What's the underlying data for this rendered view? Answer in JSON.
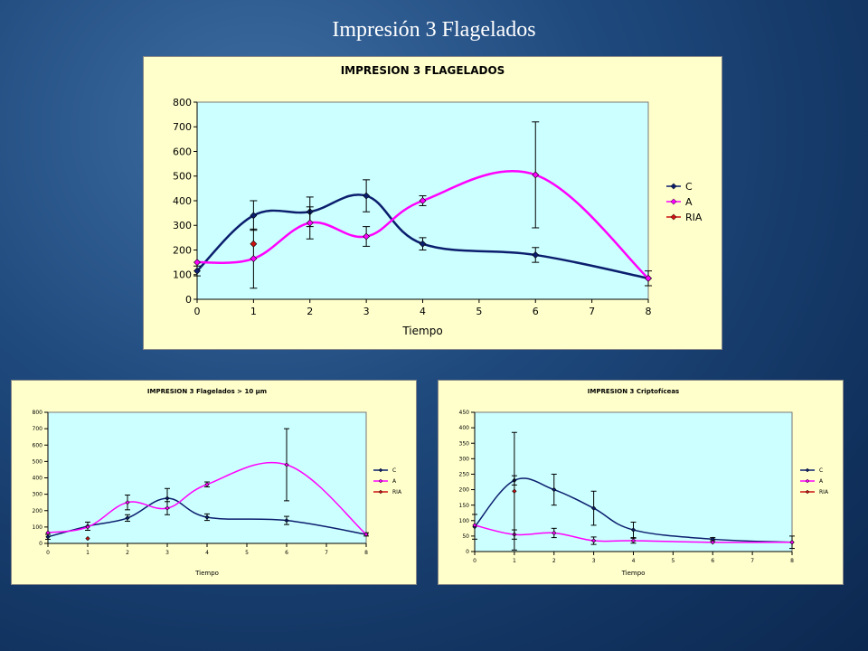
{
  "slide_title": "Impresión 3 Flagelados",
  "colors": {
    "C": "#0b1e6e",
    "A": "#ff00ff",
    "RIA": "#cc1111",
    "plot_bg": "#ccffff",
    "chart_bg": "#ffffcc"
  },
  "chart_data": [
    {
      "type": "line",
      "title": "IMPRESION 3 FLAGELADOS",
      "xlabel": "Tiempo",
      "ylabel": "",
      "xlim": [
        0,
        8
      ],
      "ylim": [
        0,
        800
      ],
      "xticks": [
        0,
        1,
        2,
        3,
        4,
        5,
        6,
        7,
        8
      ],
      "yticks": [
        0,
        100,
        200,
        300,
        400,
        500,
        600,
        700,
        800
      ],
      "legend_position": "right",
      "series": [
        {
          "name": "C",
          "x": [
            0,
            1,
            2,
            3,
            4,
            6,
            8
          ],
          "y": [
            115,
            340,
            355,
            420,
            225,
            180,
            85
          ],
          "err": [
            20,
            60,
            60,
            65,
            25,
            30,
            30
          ]
        },
        {
          "name": "A",
          "x": [
            0,
            1,
            2,
            3,
            4,
            6,
            8
          ],
          "y": [
            150,
            165,
            310,
            255,
            400,
            505,
            85
          ],
          "err": [
            0,
            120,
            65,
            40,
            20,
            215,
            0
          ]
        },
        {
          "name": "RIA",
          "x": [
            1
          ],
          "y": [
            225
          ],
          "err": [
            0
          ]
        }
      ]
    },
    {
      "type": "line",
      "title": "IMPRESION 3 Flagelados > 10 µm",
      "xlabel": "Tiempo",
      "ylabel": "",
      "xlim": [
        0,
        8
      ],
      "ylim": [
        0,
        800
      ],
      "xticks": [
        0,
        1,
        2,
        3,
        4,
        5,
        6,
        7,
        8
      ],
      "yticks": [
        0,
        100,
        200,
        300,
        400,
        500,
        600,
        700,
        800
      ],
      "legend_position": "right",
      "series": [
        {
          "name": "C",
          "x": [
            0,
            1,
            2,
            3,
            4,
            6,
            8
          ],
          "y": [
            40,
            105,
            155,
            275,
            160,
            140,
            55
          ],
          "err": [
            15,
            25,
            20,
            60,
            20,
            25,
            10
          ]
        },
        {
          "name": "A",
          "x": [
            0,
            1,
            2,
            3,
            4,
            6,
            8
          ],
          "y": [
            65,
            100,
            250,
            215,
            360,
            480,
            55
          ],
          "err": [
            0,
            0,
            45,
            40,
            15,
            220,
            0
          ]
        },
        {
          "name": "RIA",
          "x": [
            1
          ],
          "y": [
            30
          ],
          "err": [
            0
          ]
        }
      ]
    },
    {
      "type": "line",
      "title": "IMPRESION 3 Criptofíceas",
      "xlabel": "Tiempo",
      "ylabel": "",
      "xlim": [
        0,
        8
      ],
      "ylim": [
        0,
        450
      ],
      "xticks": [
        0,
        1,
        2,
        3,
        4,
        5,
        6,
        7,
        8
      ],
      "yticks": [
        0,
        50,
        100,
        150,
        200,
        250,
        300,
        350,
        400,
        450
      ],
      "legend_position": "right",
      "series": [
        {
          "name": "C",
          "x": [
            0,
            1,
            2,
            3,
            4,
            6,
            8
          ],
          "y": [
            80,
            230,
            200,
            140,
            70,
            40,
            30
          ],
          "err": [
            40,
            15,
            50,
            55,
            25,
            5,
            20
          ]
        },
        {
          "name": "A",
          "x": [
            0,
            1,
            2,
            3,
            4,
            6,
            8
          ],
          "y": [
            85,
            55,
            60,
            35,
            35,
            30,
            30
          ],
          "err": [
            0,
            15,
            15,
            12,
            8,
            0,
            0
          ]
        },
        {
          "name": "RIA",
          "x": [
            1
          ],
          "y": [
            195
          ],
          "err": [
            190
          ]
        }
      ]
    }
  ]
}
